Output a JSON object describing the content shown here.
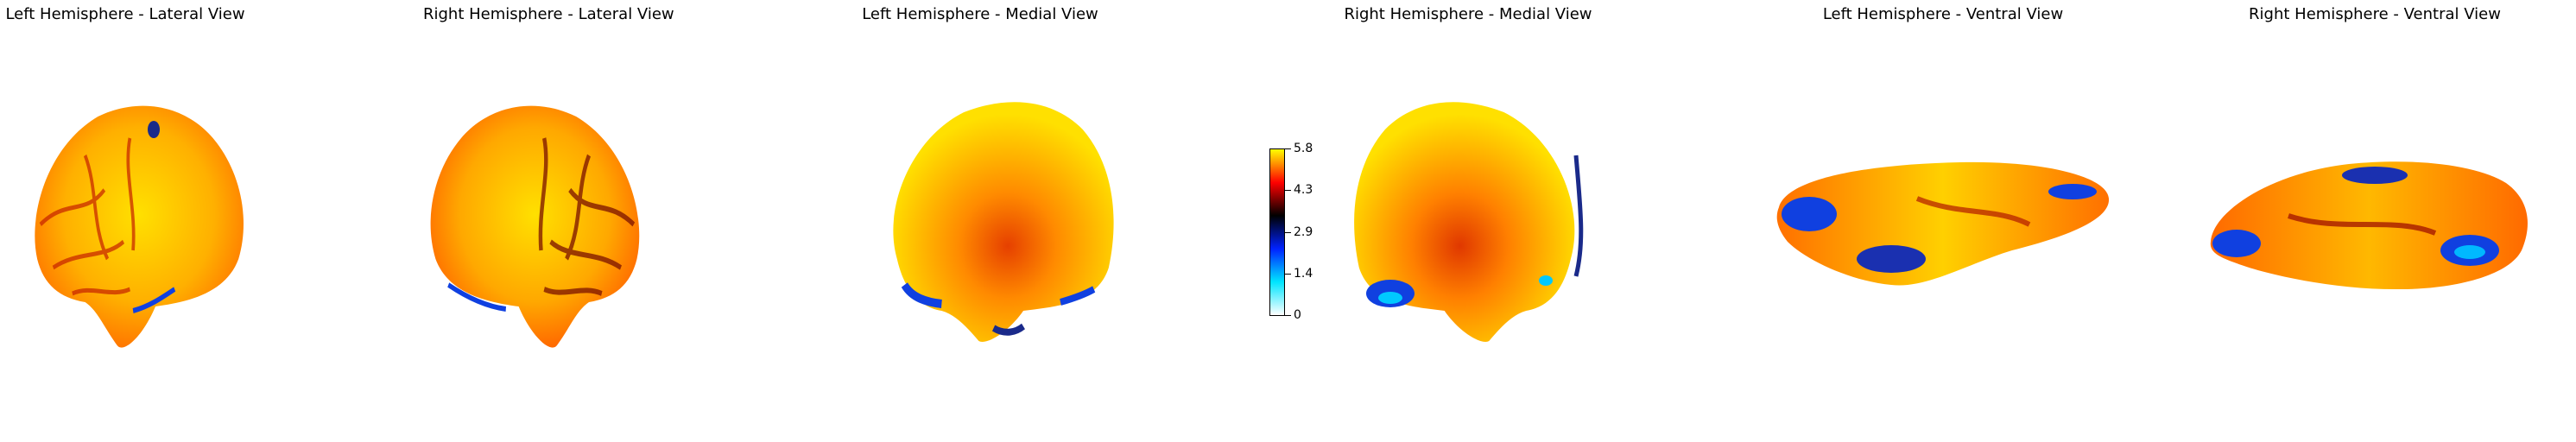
{
  "panels": [
    {
      "title": "Left Hemisphere - Lateral View"
    },
    {
      "title": "Right Hemisphere - Lateral View"
    },
    {
      "title": "Left Hemisphere - Medial View"
    },
    {
      "title": "Right Hemisphere - Medial View"
    },
    {
      "title": "Left Hemisphere - Ventral View"
    },
    {
      "title": "Right Hemisphere - Ventral View"
    }
  ],
  "colorbar": {
    "min": 0,
    "max": 5.8,
    "ticks": [
      "0",
      "1.4",
      "2.9",
      "4.3",
      "5.8"
    ],
    "colormap": [
      "#ffffff",
      "#00e5ff",
      "#0022ff",
      "#000000",
      "#ff0000",
      "#ffff00"
    ]
  },
  "colors": {
    "yellow": "#ffe400",
    "orange": "#ff9a00",
    "red": "#e02000",
    "dark": "#3a0a00",
    "blue": "#1040e0",
    "cyan": "#00c8ff"
  }
}
